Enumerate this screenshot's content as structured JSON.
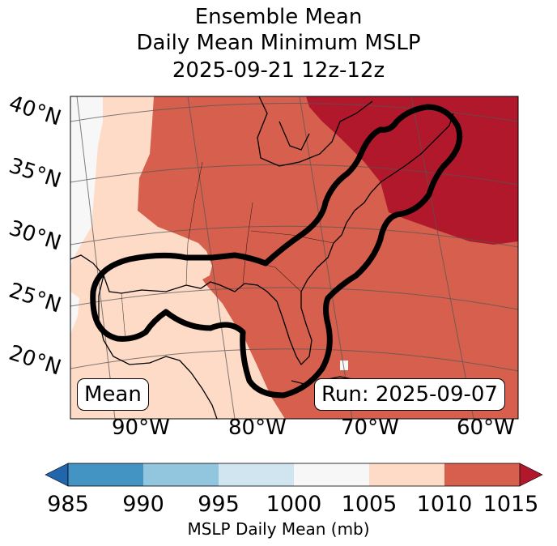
{
  "title": {
    "line1": "Ensemble Mean",
    "line2": "Daily Mean Minimum MSLP",
    "line3": "2025-09-21 12z-12z"
  },
  "map": {
    "lat_labels": [
      "40°N",
      "35°N",
      "30°N",
      "25°N",
      "20°N"
    ],
    "lon_labels": [
      "90°W",
      "80°W",
      "70°W",
      "60°W"
    ],
    "mean_label": "Mean",
    "run_label": "Run: 2025-09-07",
    "regions": [
      {
        "name": "west-bright-margin",
        "mslp_range": "1000-1005",
        "color": "#f7f7f7"
      },
      {
        "name": "gulf-and-mexico",
        "mslp_range": "1005-1010",
        "color": "#fddbc7"
      },
      {
        "name": "eastern-us-and-atlantic",
        "mslp_range": "1010-1015",
        "color": "#d6604d"
      },
      {
        "name": "northeast-high",
        "mslp_range": ">1015",
        "color": "#b2182b"
      }
    ],
    "outline_description": "ensemble mean contour outline (thick black)"
  },
  "colorbar": {
    "label": "MSLP Daily Mean (mb)",
    "ticks": [
      "985",
      "990",
      "995",
      "1000",
      "1005",
      "1010",
      "1015"
    ],
    "segments": [
      {
        "range": "985-990",
        "color": "#4393c3"
      },
      {
        "range": "990-995",
        "color": "#92c5de"
      },
      {
        "range": "995-1000",
        "color": "#d1e5f0"
      },
      {
        "range": "1000-1005",
        "color": "#f7f7f7"
      },
      {
        "range": "1005-1010",
        "color": "#fddbc7"
      },
      {
        "range": "1010-1015",
        "color": "#d6604d"
      }
    ],
    "under_color": "#2166ac",
    "over_color": "#b2182b"
  }
}
